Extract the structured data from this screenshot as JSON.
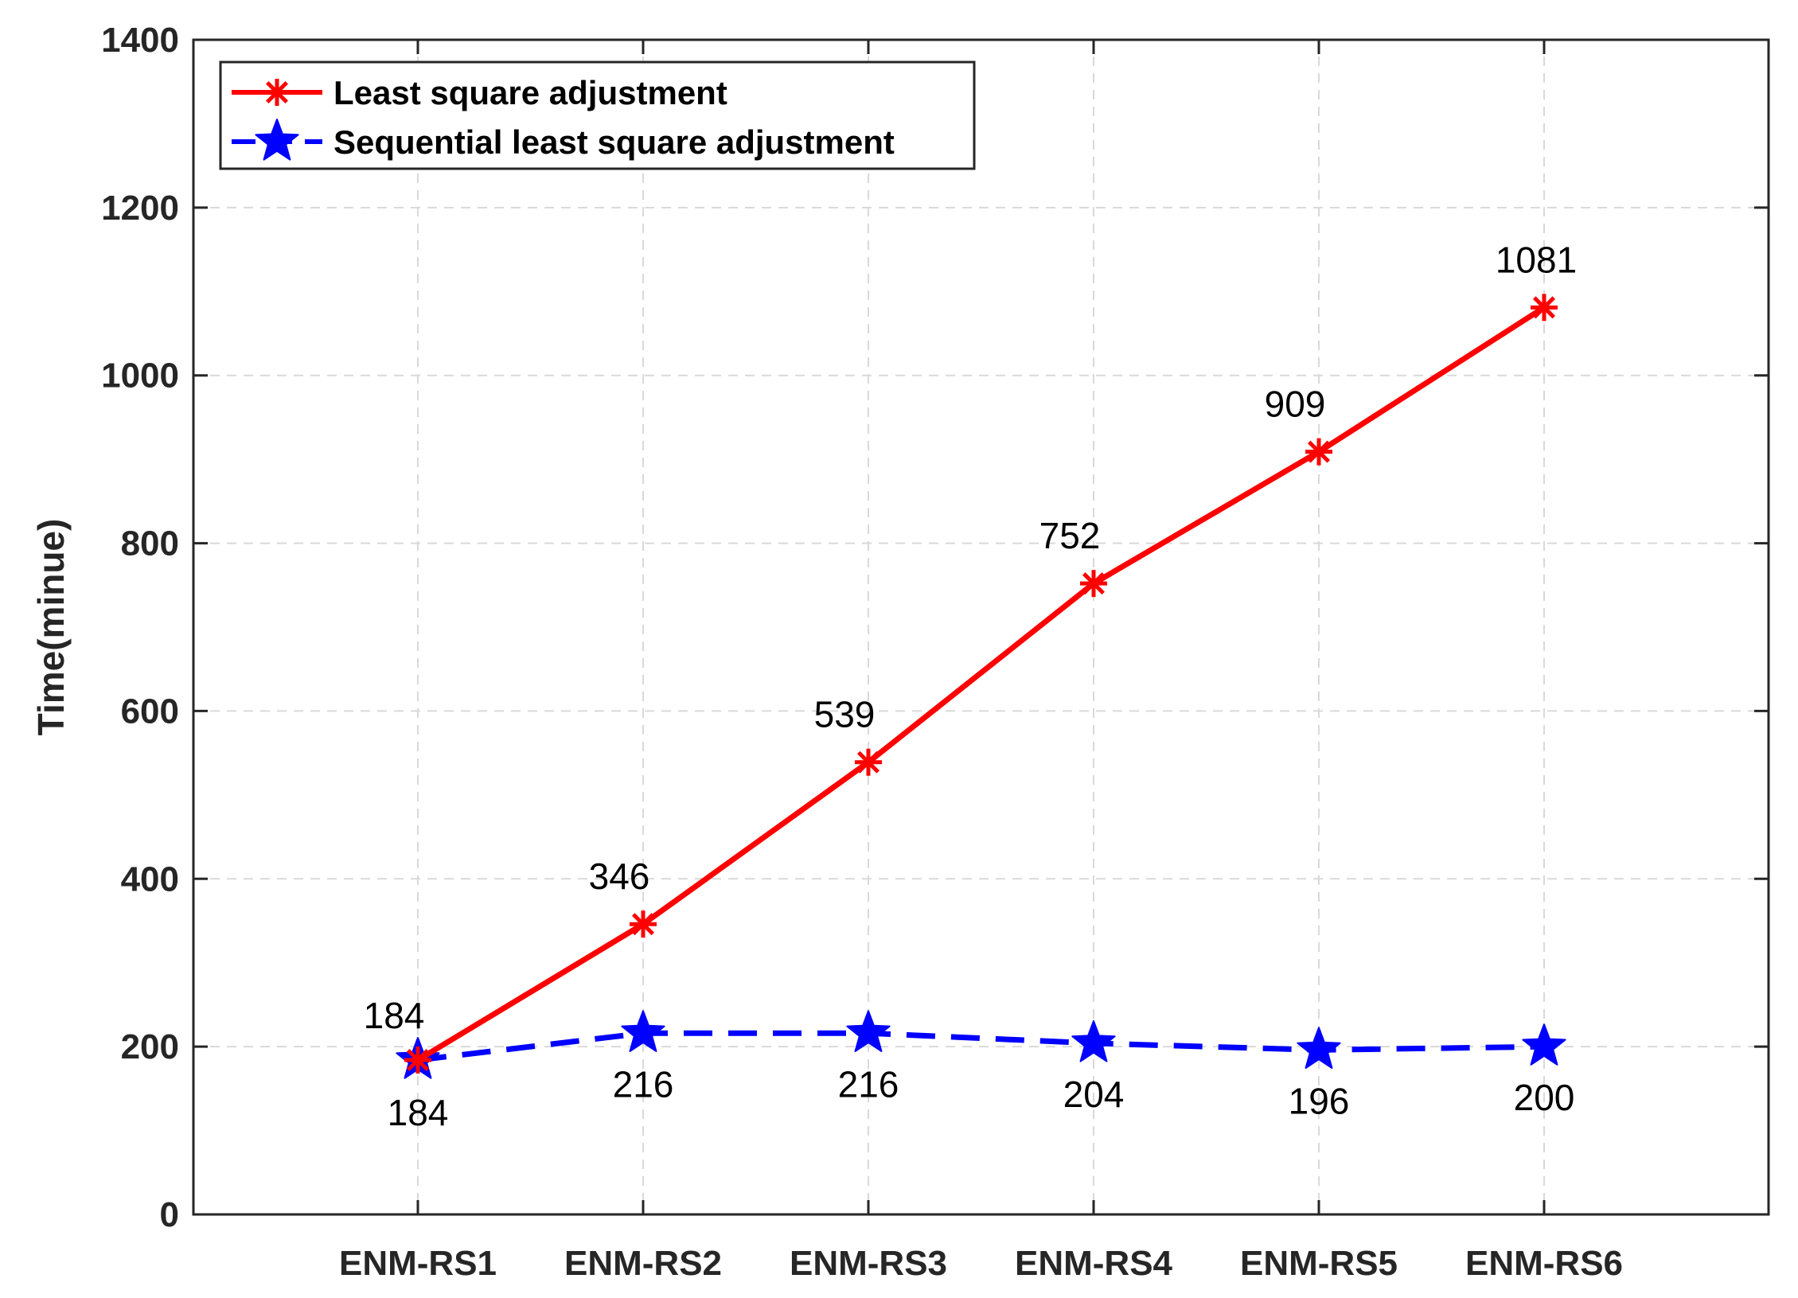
{
  "chart_data": {
    "type": "line",
    "title": "",
    "xlabel": "",
    "ylabel": "Time(minue)",
    "categories": [
      "ENM-RS1",
      "ENM-RS2",
      "ENM-RS3",
      "ENM-RS4",
      "ENM-RS5",
      "ENM-RS6"
    ],
    "ylim": [
      0,
      1400
    ],
    "yticks": [
      0,
      200,
      400,
      600,
      800,
      1000,
      1200,
      1400
    ],
    "grid": true,
    "legend_position": "top-left",
    "series": [
      {
        "name": "Least square adjustment",
        "values": [
          184,
          346,
          539,
          752,
          909,
          1081
        ],
        "labels": [
          "184",
          "346",
          "539",
          "752",
          "909",
          "1081"
        ],
        "color": "#ff0000",
        "line_style": "solid",
        "marker": "asterisk"
      },
      {
        "name": "Sequential least square adjustment",
        "values": [
          184,
          216,
          216,
          204,
          196,
          200
        ],
        "labels": [
          "184",
          "216",
          "216",
          "204",
          "196",
          "200"
        ],
        "color": "#0000ff",
        "line_style": "dashed",
        "marker": "pentagram"
      }
    ]
  }
}
